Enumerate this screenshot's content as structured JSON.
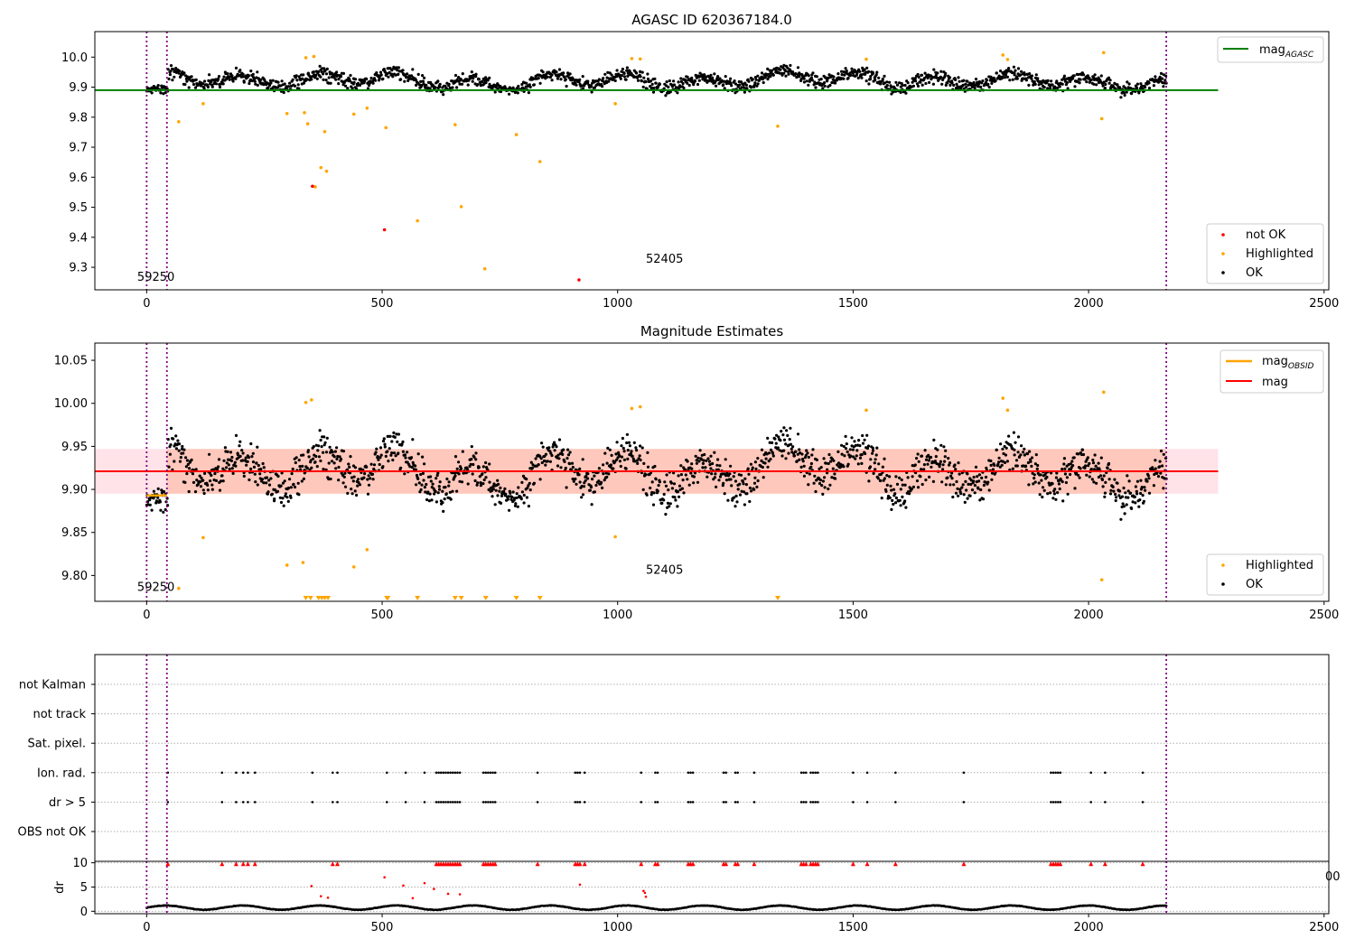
{
  "chart_data": [
    {
      "type": "scatter",
      "title": "AGASC ID 620367184.0",
      "xlabel": "",
      "ylabel": "",
      "xlim": [
        -110,
        2510
      ],
      "ylim": [
        9.225,
        10.085
      ],
      "xticks": [
        0,
        500,
        1000,
        1500,
        2000,
        2500
      ],
      "yticks": [
        9.3,
        9.4,
        9.5,
        9.6,
        9.7,
        9.8,
        9.9,
        10.0
      ],
      "ytick_labels": [
        "9.3",
        "9.4",
        "9.5",
        "9.6",
        "9.7",
        "9.8",
        "9.9",
        "10.0"
      ],
      "grid": false,
      "legend_top": {
        "position": "top-right",
        "entries": [
          {
            "label": "mag",
            "sub": "AGASC",
            "color": "#008000"
          }
        ]
      },
      "legend_bottom": {
        "position": "bottom-right",
        "entries": [
          {
            "label": "not OK",
            "color": "#ff0000"
          },
          {
            "label": "Highlighted",
            "color": "#ffa500"
          },
          {
            "label": "OK",
            "color": "#000000"
          }
        ]
      },
      "annotations": [
        {
          "text": "59250",
          "x": -20,
          "y": 9.255
        },
        {
          "text": "52405",
          "x": 1060,
          "y": 9.315
        }
      ],
      "vlines": [
        0,
        43,
        2165
      ],
      "mag_agasc": {
        "value": 9.89,
        "x_range": [
          -110,
          2275
        ],
        "color": "#008000"
      },
      "ok_baseline": {
        "mean": 9.922,
        "amplitude": 0.035,
        "noise": 0.022,
        "x_range": [
          0,
          2165
        ],
        "n_points": 1650,
        "seed": 42
      },
      "highlighted_points": [
        [
          68,
          9.785
        ],
        [
          120,
          9.845
        ],
        [
          298,
          9.812
        ],
        [
          335,
          9.815
        ],
        [
          338,
          9.998
        ],
        [
          342,
          9.778
        ],
        [
          355,
          10.002
        ],
        [
          358,
          9.568
        ],
        [
          370,
          9.632
        ],
        [
          378,
          9.752
        ],
        [
          382,
          9.62
        ],
        [
          440,
          9.81
        ],
        [
          468,
          9.83
        ],
        [
          508,
          9.765
        ],
        [
          575,
          9.455
        ],
        [
          655,
          9.775
        ],
        [
          668,
          9.502
        ],
        [
          718,
          9.295
        ],
        [
          785,
          9.742
        ],
        [
          835,
          9.652
        ],
        [
          995,
          9.845
        ],
        [
          1030,
          9.995
        ],
        [
          1048,
          9.994
        ],
        [
          1340,
          9.77
        ],
        [
          1528,
          9.993
        ],
        [
          1818,
          10.007
        ],
        [
          1828,
          9.992
        ],
        [
          2028,
          9.795
        ],
        [
          2032,
          10.015
        ]
      ],
      "notok_points": [
        [
          352,
          9.57
        ],
        [
          505,
          9.425
        ],
        [
          918,
          9.258
        ]
      ]
    },
    {
      "type": "scatter",
      "title": "Magnitude Estimates",
      "xlabel": "",
      "ylabel": "",
      "xlim": [
        -110,
        2510
      ],
      "ylim": [
        9.77,
        10.07
      ],
      "xticks": [
        0,
        500,
        1000,
        1500,
        2000,
        2500
      ],
      "yticks": [
        9.8,
        9.85,
        9.9,
        9.95,
        10.0,
        10.05
      ],
      "ytick_labels": [
        "9.80",
        "9.85",
        "9.90",
        "9.95",
        "10.00",
        "10.05"
      ],
      "grid": false,
      "legend_top": {
        "position": "top-right",
        "entries": [
          {
            "label": "mag",
            "sub": "OBSID",
            "color": "#ffa500"
          },
          {
            "label": "mag",
            "sub": "",
            "color": "#ff0000"
          }
        ]
      },
      "legend_bottom": {
        "position": "bottom-right",
        "entries": [
          {
            "label": "Highlighted",
            "color": "#ffa500"
          },
          {
            "label": "OK",
            "color": "#000000"
          }
        ]
      },
      "annotations": [
        {
          "text": "59250",
          "x": -20,
          "y": 9.782
        },
        {
          "text": "52405",
          "x": 1060,
          "y": 9.802
        }
      ],
      "vlines": [
        0,
        43,
        2165
      ],
      "mag": {
        "value": 9.921,
        "x_range": [
          -110,
          2275
        ],
        "color": "#ff0000"
      },
      "mag_band": {
        "low": 9.895,
        "high": 9.947,
        "x_range": [
          -110,
          2275
        ]
      },
      "mag_obsid": [
        {
          "x0": 0,
          "x1": 43,
          "value": 9.893,
          "color": "#ffa500"
        }
      ],
      "ok_baseline": {
        "mean": 9.921,
        "amplitude": 0.035,
        "noise": 0.022,
        "x_range": [
          0,
          2165
        ],
        "n_points": 1650,
        "seed": 42
      },
      "highlighted_points": [
        [
          68,
          9.785
        ],
        [
          120,
          9.844
        ],
        [
          298,
          9.812
        ],
        [
          332,
          9.815
        ],
        [
          338,
          10.001
        ],
        [
          350,
          10.004
        ],
        [
          440,
          9.81
        ],
        [
          468,
          9.83
        ],
        [
          995,
          9.845
        ],
        [
          1030,
          9.994
        ],
        [
          1048,
          9.996
        ],
        [
          1528,
          9.992
        ],
        [
          1818,
          10.006
        ],
        [
          1828,
          9.992
        ],
        [
          2028,
          9.795
        ],
        [
          2032,
          10.013
        ]
      ],
      "clipped_markers_x": [
        338,
        348,
        365,
        372,
        378,
        385,
        510,
        512,
        575,
        655,
        668,
        720,
        785,
        835,
        1340
      ]
    },
    {
      "type": "scatter",
      "title": "",
      "xlim": [
        -110,
        2510
      ],
      "vlines": [
        0,
        43,
        2165
      ],
      "flag_categories": [
        "not Kalman",
        "not track",
        "Sat. pixel.",
        "Ion. rad.",
        "dr > 5",
        "OBS not OK"
      ],
      "flag_points_x": [
        45,
        160,
        190,
        205,
        215,
        230,
        352,
        395,
        405,
        510,
        550,
        590,
        615,
        620,
        625,
        630,
        635,
        640,
        645,
        650,
        655,
        660,
        665,
        715,
        720,
        725,
        730,
        735,
        740,
        830,
        910,
        915,
        920,
        930,
        1050,
        1080,
        1085,
        1150,
        1155,
        1160,
        1225,
        1230,
        1250,
        1255,
        1290,
        1390,
        1395,
        1400,
        1410,
        1415,
        1420,
        1425,
        1500,
        1530,
        1590,
        1735,
        1920,
        1925,
        1930,
        1935,
        1940,
        2005,
        2035,
        2115
      ],
      "flag_rows": {
        "Ion. rad.": "all",
        "dr > 5": "all"
      }
    },
    {
      "type": "scatter",
      "title": "",
      "xlabel": "",
      "ylabel": "dr",
      "xlim": [
        -110,
        2510
      ],
      "ylim": [
        -0.5,
        10.3
      ],
      "xticks": [
        0,
        500,
        1000,
        1500,
        2000,
        2500
      ],
      "xtick_labels": [
        "0",
        "500",
        "1000",
        "1500",
        "2000",
        "2500"
      ],
      "yticks": [
        0,
        5,
        10
      ],
      "grid": true,
      "vlines": [
        0,
        43,
        2165
      ],
      "dr_baseline": {
        "x_range": [
          0,
          2165
        ],
        "n_points": 1650,
        "seed": 7,
        "low": 0.2,
        "high": 1.3
      },
      "dr_outliers": [
        [
          350,
          5.2
        ],
        [
          370,
          3.1
        ],
        [
          385,
          2.8
        ],
        [
          505,
          7.0
        ],
        [
          545,
          5.3
        ],
        [
          565,
          2.7
        ],
        [
          590,
          5.8
        ],
        [
          610,
          4.6
        ],
        [
          640,
          3.6
        ],
        [
          665,
          3.5
        ],
        [
          920,
          5.5
        ],
        [
          1055,
          4.2
        ],
        [
          1058,
          3.8
        ],
        [
          1060,
          3.0
        ]
      ],
      "dr_clipped_x": [
        45,
        160,
        190,
        205,
        215,
        230,
        395,
        405,
        615,
        620,
        625,
        630,
        635,
        640,
        645,
        650,
        655,
        660,
        665,
        715,
        720,
        725,
        730,
        735,
        740,
        830,
        910,
        915,
        920,
        930,
        1050,
        1080,
        1085,
        1150,
        1155,
        1160,
        1225,
        1230,
        1250,
        1255,
        1290,
        1390,
        1395,
        1400,
        1410,
        1415,
        1420,
        1425,
        1500,
        1530,
        1590,
        1735,
        1920,
        1925,
        1930,
        1935,
        1940,
        2005,
        2035,
        2115
      ],
      "fragment_label": "00"
    }
  ]
}
